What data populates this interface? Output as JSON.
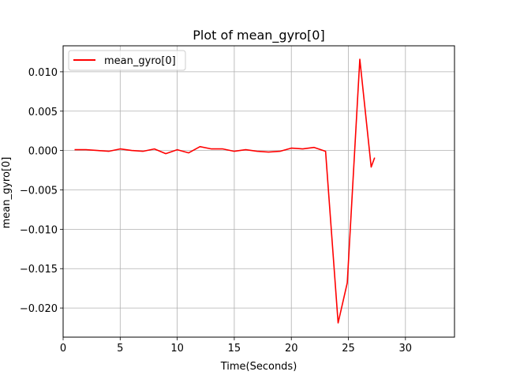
{
  "chart_data": {
    "type": "line",
    "title": "Plot of mean_gyro[0]",
    "xlabel": "Time(Seconds)",
    "ylabel": "mean_gyro[0]",
    "xlim": [
      0,
      34.3
    ],
    "ylim": [
      -0.0237,
      0.0133
    ],
    "grid": true,
    "legend_position": "top-left",
    "x_ticks": [
      0,
      5,
      10,
      15,
      20,
      25,
      30
    ],
    "x_tick_labels": [
      "0",
      "5",
      "10",
      "15",
      "20",
      "25",
      "30"
    ],
    "y_ticks": [
      0.01,
      0.005,
      0.0,
      -0.005,
      -0.01,
      -0.015,
      -0.02
    ],
    "y_tick_labels": [
      "0.010",
      "0.005",
      "0.000",
      "−0.005",
      "−0.010",
      "−0.015",
      "−0.020"
    ],
    "series": [
      {
        "name": "mean_gyro[0]",
        "color": "#ff0000",
        "x": [
          1,
          2,
          3,
          4,
          5,
          6,
          7,
          8,
          9,
          10,
          11,
          12,
          13,
          14,
          15,
          16,
          17,
          18,
          19,
          20,
          21,
          22,
          23,
          24.1,
          24.9,
          26,
          27,
          27.3
        ],
        "values": [
          0.0001,
          0.0001,
          0.0,
          -0.0001,
          0.0002,
          0.0,
          -0.0001,
          0.0002,
          -0.0004,
          0.0001,
          -0.0003,
          0.0005,
          0.0002,
          0.0002,
          -0.0001,
          0.0001,
          -0.0001,
          -0.0002,
          -0.0001,
          0.0003,
          0.0002,
          0.0004,
          -0.0001,
          -0.0219,
          -0.0168,
          0.0116,
          -0.0021,
          -0.0009
        ]
      }
    ]
  }
}
